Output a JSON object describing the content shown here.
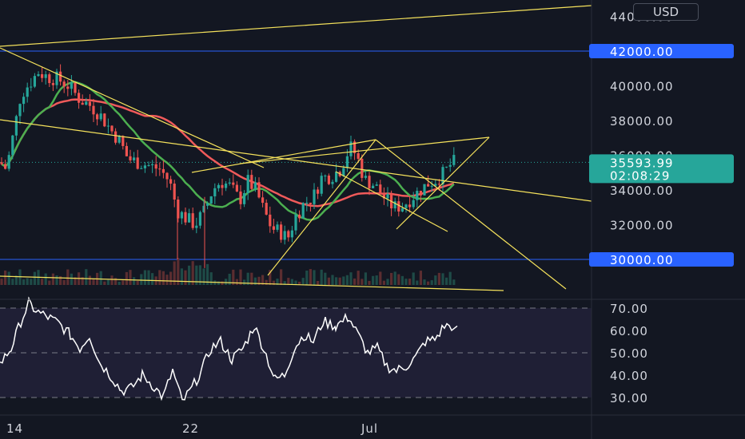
{
  "chart_data": [
    {
      "type": "candlestick",
      "currency": "USD",
      "ylim": [
        29000,
        45000
      ],
      "y_ticks": [
        "44000.00",
        "40000.00",
        "38000.00",
        "36000.00",
        "34000.00",
        "32000.00"
      ],
      "x_ticks": [
        "14",
        "22",
        "Jul"
      ],
      "horizontal_levels": [
        {
          "label": "42000.00",
          "value": 42000
        },
        {
          "label": "30000.00",
          "value": 30000
        }
      ],
      "last_price": {
        "label": "35593.99",
        "countdown": "02:08:29",
        "value": 35594
      },
      "series": [
        {
          "name": "",
          "kind": "moving-average",
          "color": "#f05a5a"
        },
        {
          "name": "",
          "kind": "moving-average",
          "color": "#4caf50"
        }
      ],
      "colors": {
        "up": "#26a69a",
        "down": "#ef5350",
        "trendline": "#f5e25c",
        "level": "#2962ff",
        "rsi": "#ffffff",
        "rsi_band": "#7e57c2"
      }
    },
    {
      "type": "line",
      "ylim": [
        25,
        75
      ],
      "y_ticks": [
        "70.00",
        "60.00",
        "50.00",
        "40.00",
        "30.00"
      ],
      "band": [
        30,
        70
      ]
    }
  ]
}
